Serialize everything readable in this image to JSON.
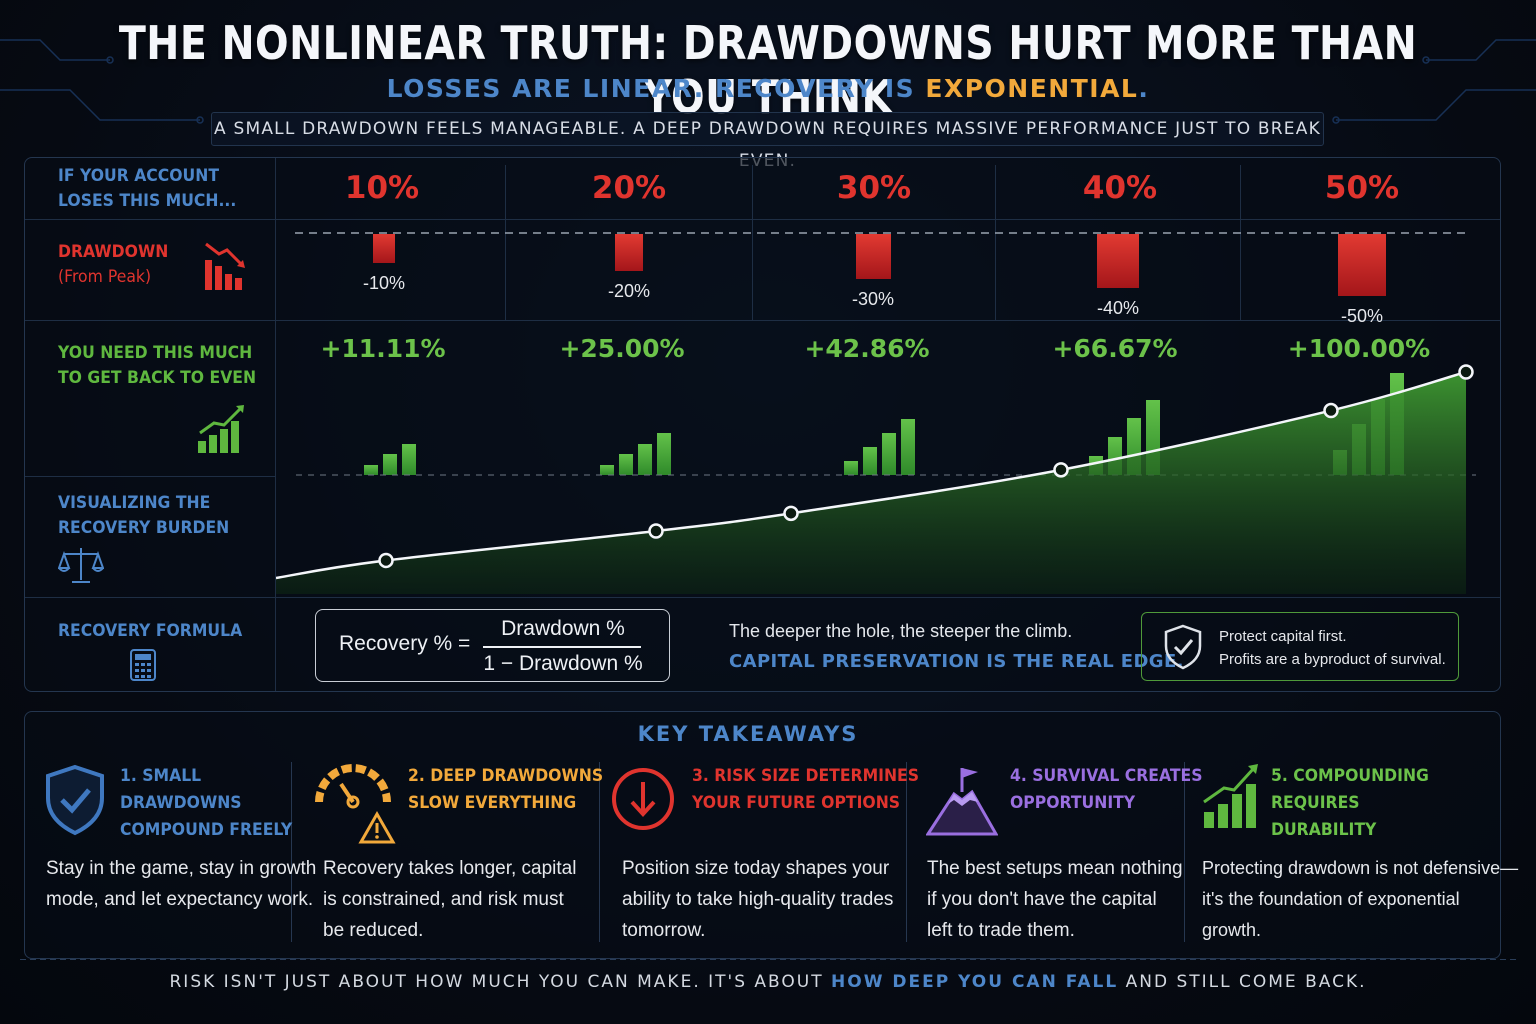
{
  "header": {
    "title": "THE NONLINEAR TRUTH: DRAWDOWNS HURT MORE THAN YOU THINK",
    "subtitle_part1": "LOSSES ARE LINEAR. RECOVERY IS ",
    "subtitle_highlight": "EXPONENTIAL",
    "subtitle_end": ".",
    "tagline": "A SMALL DRAWDOWN FEELS MANAGEABLE. A DEEP DRAWDOWN REQUIRES MASSIVE PERFORMANCE JUST TO BREAK EVEN."
  },
  "rows": {
    "loss_label_1": "IF YOUR ACCOUNT",
    "loss_label_2": "LOSES THIS MUCH...",
    "drawdown_label": "DRAWDOWN",
    "drawdown_sub": "(From Peak)",
    "need_label_1": "YOU NEED THIS MUCH",
    "need_label_2": "TO GET BACK TO EVEN",
    "visual_label_1": "VISUALIZING THE",
    "visual_label_2": "RECOVERY BURDEN",
    "formula_label": "RECOVERY FORMULA"
  },
  "chart_data": {
    "type": "table",
    "columns": [
      "10%",
      "20%",
      "30%",
      "40%",
      "50%"
    ],
    "drawdown": [
      -10,
      -20,
      -30,
      -40,
      -50
    ],
    "drawdown_labels": [
      "-10%",
      "-20%",
      "-30%",
      "-40%",
      "-50%"
    ],
    "recovery_needed": [
      11.11,
      25.0,
      42.86,
      66.67,
      100.0
    ],
    "recovery_labels": [
      "+11.11%",
      "+25.00%",
      "+42.86%",
      "+66.67%",
      "+100.00%"
    ],
    "curve": {
      "type": "area",
      "x": [
        10,
        20,
        25,
        35,
        45,
        50
      ],
      "y": [
        11.11,
        25.0,
        33.33,
        53.85,
        81.82,
        100.0
      ]
    }
  },
  "formula": {
    "lhs": "Recovery % =",
    "numerator": "Drawdown %",
    "denominator": "1 − Drawdown %",
    "note": "The deeper the hole, the steeper the climb.",
    "emphasis": "CAPITAL PRESERVATION IS THE REAL EDGE.",
    "protect_1": "Protect capital first.",
    "protect_2": "Profits are a byproduct of survival."
  },
  "takeaways": {
    "title": "KEY TAKEAWAYS",
    "items": [
      {
        "head": [
          "1. SMALL",
          "DRAWDOWNS",
          "COMPOUND FREELY"
        ],
        "body": [
          "Stay in the game, stay in growth",
          "mode, and let expectancy work."
        ],
        "color": "#4d86c9",
        "icon": "shield-check-icon"
      },
      {
        "head": [
          "2. DEEP DRAWDOWNS",
          "SLOW EVERYTHING"
        ],
        "body": [
          "Recovery takes longer, capital",
          "is constrained, and risk must",
          "be reduced."
        ],
        "color": "#f2a93b",
        "icon": "gauge-warning-icon"
      },
      {
        "head": [
          "3. RISK SIZE DETERMINES",
          "YOUR FUTURE OPTIONS"
        ],
        "body": [
          "Position size today shapes your",
          "ability to take high-quality trades",
          "tomorrow."
        ],
        "color": "#e0342e",
        "icon": "down-arrow-circle-icon"
      },
      {
        "head": [
          "4. SURVIVAL CREATES",
          "OPPORTUNITY"
        ],
        "body": [
          "The best setups mean nothing",
          "if you don't have the capital",
          "left to trade them."
        ],
        "color": "#9a6fe0",
        "icon": "mountain-flag-icon"
      },
      {
        "head": [
          "5. COMPOUNDING REQUIRES",
          "DURABILITY"
        ],
        "body": [
          "Protecting drawdown is not defensive—",
          "it's the foundation of exponential",
          "growth."
        ],
        "color": "#6cc24a",
        "icon": "growth-bars-icon"
      }
    ]
  },
  "footer": {
    "part1": "RISK ISN'T JUST ABOUT HOW MUCH YOU CAN MAKE. IT'S ABOUT ",
    "highlight": "HOW DEEP YOU CAN FALL",
    "part2": " AND STILL COME BACK."
  },
  "colors": {
    "accent_blue": "#4d86c9",
    "red": "#e0342e",
    "green": "#6cc24a",
    "orange": "#f2a93b",
    "purple": "#9a6fe0"
  }
}
